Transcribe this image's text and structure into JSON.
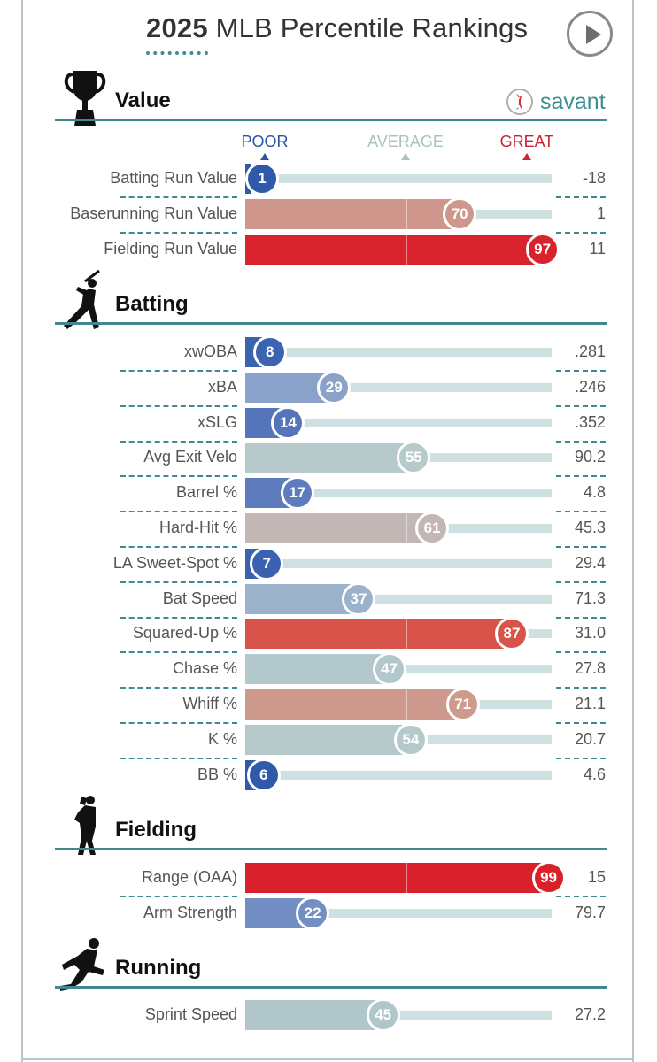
{
  "header": {
    "title_year": "2025",
    "title_rest": "MLB Percentile Rankings",
    "brand": "savant"
  },
  "scale": {
    "poor": "POOR",
    "average": "AVERAGE",
    "great": "GREAT",
    "poor_color": "#2a56a6",
    "average_color": "#a8c2c4",
    "great_color": "#cc2233"
  },
  "sections": [
    {
      "title": "Value",
      "icon": "trophy-icon"
    },
    {
      "title": "Batting",
      "icon": "batter-icon"
    },
    {
      "title": "Fielding",
      "icon": "fielder-icon"
    },
    {
      "title": "Running",
      "icon": "runner-icon"
    }
  ],
  "chart_data": {
    "type": "bar",
    "orientation": "horizontal",
    "xlim": [
      0,
      100
    ],
    "groups": [
      {
        "name": "Value",
        "rows": [
          {
            "metric": "Batting Run Value",
            "percentile": 1,
            "value": "-18",
            "color": "#2f5aaa"
          },
          {
            "metric": "Baserunning Run Value",
            "percentile": 70,
            "value": "1",
            "color": "#cf968b"
          },
          {
            "metric": "Fielding Run Value",
            "percentile": 97,
            "value": "11",
            "color": "#d9232c"
          }
        ]
      },
      {
        "name": "Batting",
        "rows": [
          {
            "metric": "xwOBA",
            "percentile": 8,
            "value": ".281",
            "color": "#3a63b0"
          },
          {
            "metric": "xBA",
            "percentile": 29,
            "value": ".246",
            "color": "#8aa1c9"
          },
          {
            "metric": "xSLG",
            "percentile": 14,
            "value": ".352",
            "color": "#5575ba"
          },
          {
            "metric": "Avg Exit Velo",
            "percentile": 55,
            "value": "90.2",
            "color": "#b6cacb"
          },
          {
            "metric": "Barrel %",
            "percentile": 17,
            "value": "4.8",
            "color": "#5e7cbd"
          },
          {
            "metric": "Hard-Hit %",
            "percentile": 61,
            "value": "45.3",
            "color": "#c3b7b6"
          },
          {
            "metric": "LA Sweet-Spot %",
            "percentile": 7,
            "value": "29.4",
            "color": "#3a62b0"
          },
          {
            "metric": "Bat Speed",
            "percentile": 37,
            "value": "71.3",
            "color": "#9cb2cb"
          },
          {
            "metric": "Squared-Up %",
            "percentile": 87,
            "value": "31.0",
            "color": "#d8544a"
          },
          {
            "metric": "Chase %",
            "percentile": 47,
            "value": "27.8",
            "color": "#b2c8ca"
          },
          {
            "metric": "Whiff %",
            "percentile": 71,
            "value": "21.1",
            "color": "#cf9a8e"
          },
          {
            "metric": "K %",
            "percentile": 54,
            "value": "20.7",
            "color": "#b5c9ca"
          },
          {
            "metric": "BB %",
            "percentile": 6,
            "value": "4.6",
            "color": "#2f5aaa"
          }
        ]
      },
      {
        "name": "Fielding",
        "rows": [
          {
            "metric": "Range (OAA)",
            "percentile": 99,
            "value": "15",
            "color": "#d9212b"
          },
          {
            "metric": "Arm Strength",
            "percentile": 22,
            "value": "79.7",
            "color": "#728ec3"
          }
        ]
      },
      {
        "name": "Running",
        "rows": [
          {
            "metric": "Sprint Speed",
            "percentile": 45,
            "value": "27.2",
            "color": "#b0c6c9"
          }
        ]
      }
    ]
  }
}
